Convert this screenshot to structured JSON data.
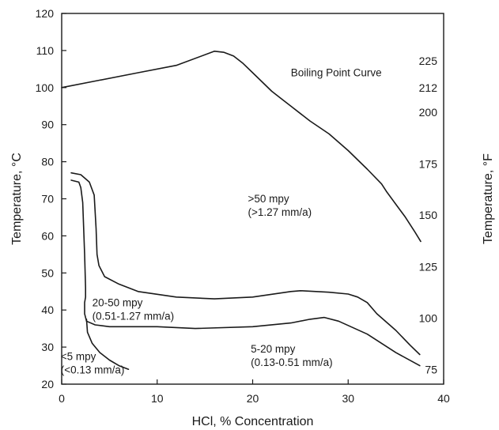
{
  "chart_data": {
    "type": "line",
    "xlabel": "HCl, % Concentration",
    "ylabel": "Temperature, °C",
    "y2label": "Temperature, °F",
    "xlim": [
      0,
      40
    ],
    "ylim": [
      20,
      120
    ],
    "x_ticks": [
      0,
      10,
      20,
      30,
      40
    ],
    "y_ticks": [
      20,
      30,
      40,
      50,
      60,
      70,
      80,
      90,
      100,
      110,
      120
    ],
    "y2_ticks": [
      {
        "label": "75",
        "c": 23.9
      },
      {
        "label": "100",
        "c": 37.8
      },
      {
        "label": "125",
        "c": 51.7
      },
      {
        "label": "150",
        "c": 65.6
      },
      {
        "label": "175",
        "c": 79.4
      },
      {
        "label": "200",
        "c": 93.3
      },
      {
        "label": "212",
        "c": 100.0
      },
      {
        "label": "225",
        "c": 107.2
      }
    ],
    "grid": false,
    "series": [
      {
        "name": "Boiling Point Curve",
        "points": [
          [
            0,
            100
          ],
          [
            4,
            102
          ],
          [
            8,
            104
          ],
          [
            12,
            106
          ],
          [
            16,
            109.8
          ],
          [
            17,
            109.5
          ],
          [
            18,
            108.5
          ],
          [
            19,
            106.5
          ],
          [
            20,
            104
          ],
          [
            22,
            99
          ],
          [
            24,
            95
          ],
          [
            26,
            91
          ],
          [
            28,
            87.5
          ],
          [
            30,
            83
          ],
          [
            32,
            78
          ],
          [
            33.5,
            74
          ],
          [
            34,
            72
          ],
          [
            35,
            68.5
          ],
          [
            36,
            65
          ],
          [
            37,
            61
          ],
          [
            37.6,
            58.5
          ]
        ]
      },
      {
        "points": [
          [
            1,
            77
          ],
          [
            2,
            76.5
          ],
          [
            2.9,
            74.5
          ],
          [
            3.4,
            71
          ],
          [
            3.6,
            62
          ],
          [
            3.7,
            55
          ],
          [
            3.9,
            52
          ],
          [
            4.5,
            49
          ],
          [
            6,
            47
          ],
          [
            8,
            45
          ],
          [
            12,
            43.5
          ],
          [
            16,
            43
          ],
          [
            20,
            43.5
          ],
          [
            24,
            45
          ],
          [
            25,
            45.2
          ],
          [
            28,
            44.8
          ],
          [
            30,
            44.3
          ],
          [
            31,
            43.5
          ],
          [
            32,
            42
          ],
          [
            33,
            39
          ],
          [
            35,
            34.5
          ],
          [
            36.5,
            30.5
          ],
          [
            37.5,
            28
          ]
        ]
      },
      {
        "points": [
          [
            1,
            75
          ],
          [
            1.8,
            74.5
          ],
          [
            2,
            73
          ],
          [
            2.2,
            69
          ],
          [
            2.4,
            55
          ],
          [
            2.5,
            46
          ],
          [
            2.5,
            43.5
          ],
          [
            2.4,
            42
          ],
          [
            2.4,
            39
          ],
          [
            2.6,
            37
          ],
          [
            3.5,
            36
          ],
          [
            5,
            35.5
          ],
          [
            10,
            35.5
          ],
          [
            14,
            35
          ],
          [
            20,
            35.5
          ],
          [
            24,
            36.5
          ],
          [
            26,
            37.5
          ],
          [
            27.5,
            38
          ],
          [
            29,
            37
          ],
          [
            32,
            33.5
          ],
          [
            35,
            28.5
          ],
          [
            37.5,
            25
          ]
        ]
      },
      {
        "points": [
          [
            2.6,
            37.5
          ],
          [
            2.7,
            34
          ],
          [
            3.2,
            31
          ],
          [
            4,
            28.5
          ],
          [
            5,
            26.5
          ],
          [
            6,
            25
          ],
          [
            7,
            24
          ]
        ]
      }
    ],
    "annotations": [
      {
        "lines": [
          "Boiling Point Curve"
        ],
        "x": 24,
        "y": 103
      },
      {
        "lines": [
          ">50 mpy",
          "(>1.27 mm/a)"
        ],
        "x": 19.5,
        "y": 69
      },
      {
        "lines": [
          "20-50 mpy",
          "(0.51-1.27 mm/a)"
        ],
        "x": 3.2,
        "y": 41
      },
      {
        "lines": [
          "5-20 mpy",
          "(0.13-0.51 mm/a)"
        ],
        "x": 19.8,
        "y": 28.5
      },
      {
        "lines": [
          "<5 mpy",
          "(<0.13 mm/a)"
        ],
        "x": -0.1,
        "y": 26.5
      }
    ]
  }
}
